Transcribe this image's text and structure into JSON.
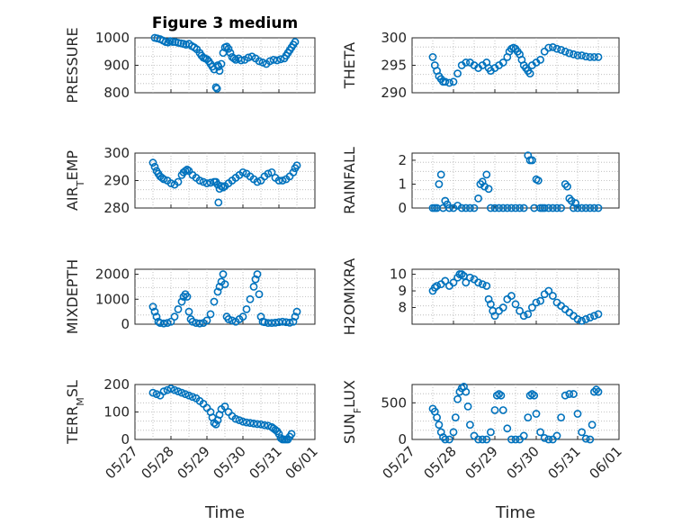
{
  "figure": {
    "title": "Figure 3 medium",
    "marker_color": "#0072bd",
    "x_tick_labels": [
      "05/27",
      "05/28",
      "05/29",
      "05/30",
      "05/31",
      "06/01"
    ]
  },
  "chart_data": [
    {
      "type": "scatter",
      "marker": "circle",
      "grid": "on",
      "title": "Figure 3 medium",
      "xlabel": "",
      "ylabel": "PRESSURE",
      "xlim": [
        0,
        5
      ],
      "ylim": [
        800,
        1000
      ],
      "yticks": [
        800,
        900,
        1000
      ],
      "x": [
        0.55,
        0.62,
        0.7,
        0.78,
        0.85,
        0.92,
        0.98,
        1.05,
        1.12,
        1.2,
        1.28,
        1.35,
        1.42,
        1.5,
        1.58,
        1.65,
        1.72,
        1.8,
        1.85,
        1.9,
        1.95,
        2.0,
        2.05,
        2.1,
        2.15,
        2.2,
        2.25,
        2.28,
        2.3,
        2.32,
        2.35,
        2.4,
        2.45,
        2.5,
        2.55,
        2.6,
        2.65,
        2.7,
        2.75,
        2.8,
        2.88,
        2.95,
        3.05,
        3.15,
        3.25,
        3.35,
        3.45,
        3.55,
        3.65,
        3.75,
        3.85,
        3.95,
        4.05,
        4.15,
        4.2,
        4.25,
        4.3,
        4.35,
        4.4,
        4.45
      ],
      "y": [
        1000,
        998,
        995,
        990,
        985,
        983,
        988,
        985,
        985,
        982,
        980,
        978,
        975,
        978,
        970,
        965,
        958,
        945,
        935,
        928,
        925,
        922,
        915,
        905,
        895,
        885,
        820,
        815,
        900,
        895,
        880,
        905,
        945,
        965,
        968,
        960,
        945,
        930,
        925,
        920,
        925,
        918,
        920,
        928,
        932,
        925,
        915,
        910,
        905,
        915,
        920,
        918,
        922,
        925,
        935,
        945,
        955,
        965,
        975,
        985
      ]
    },
    {
      "type": "scatter",
      "marker": "circle",
      "grid": "on",
      "xlabel": "",
      "ylabel": "THETA",
      "xlim": [
        0,
        5
      ],
      "ylim": [
        290,
        300
      ],
      "yticks": [
        290,
        295,
        300
      ],
      "x": [
        0.5,
        0.55,
        0.6,
        0.65,
        0.7,
        0.75,
        0.8,
        0.9,
        1.0,
        1.1,
        1.2,
        1.3,
        1.4,
        1.5,
        1.6,
        1.7,
        1.8,
        1.85,
        1.9,
        2.0,
        2.1,
        2.2,
        2.3,
        2.35,
        2.4,
        2.45,
        2.5,
        2.55,
        2.6,
        2.65,
        2.7,
        2.75,
        2.8,
        2.85,
        2.9,
        3.0,
        3.1,
        3.2,
        3.3,
        3.4,
        3.5,
        3.6,
        3.7,
        3.8,
        3.9,
        4.0,
        4.1,
        4.2,
        4.3,
        4.4,
        4.5
      ],
      "y": [
        296.5,
        295,
        294,
        293,
        292.5,
        292,
        292,
        291.8,
        292,
        293.5,
        295,
        295.5,
        295.5,
        295,
        294.5,
        295,
        295.5,
        294.5,
        294,
        294.5,
        295,
        295.5,
        296.5,
        297.5,
        298,
        298.2,
        298,
        297.5,
        297,
        296,
        295,
        294.5,
        294,
        293.5,
        295,
        295.5,
        296,
        297.5,
        298.2,
        298.3,
        298,
        297.8,
        297.5,
        297.2,
        297,
        296.8,
        296.8,
        296.6,
        296.5,
        296.5,
        296.5
      ]
    },
    {
      "type": "scatter",
      "marker": "circle",
      "grid": "on",
      "xlabel": "",
      "ylabel": "AIR_TEMP",
      "xlim": [
        0,
        5
      ],
      "ylim": [
        280,
        300
      ],
      "yticks": [
        280,
        290,
        300
      ],
      "x": [
        0.5,
        0.55,
        0.6,
        0.65,
        0.7,
        0.75,
        0.8,
        0.9,
        1.0,
        1.1,
        1.2,
        1.3,
        1.35,
        1.4,
        1.45,
        1.5,
        1.6,
        1.7,
        1.8,
        1.9,
        2.0,
        2.1,
        2.2,
        2.25,
        2.3,
        2.32,
        2.35,
        2.4,
        2.45,
        2.5,
        2.6,
        2.7,
        2.8,
        2.9,
        3.0,
        3.1,
        3.2,
        3.3,
        3.4,
        3.5,
        3.6,
        3.7,
        3.8,
        3.9,
        4.0,
        4.1,
        4.2,
        4.3,
        4.4,
        4.45,
        4.5
      ],
      "y": [
        296.5,
        295,
        293.5,
        292.5,
        291.5,
        291,
        290.5,
        290,
        289,
        288.5,
        289.5,
        292,
        293,
        293.5,
        294,
        293.5,
        292,
        291,
        290,
        289.5,
        289,
        289.2,
        289.5,
        289.5,
        288.5,
        282,
        287,
        288,
        287.5,
        288,
        289,
        290,
        291,
        292,
        293,
        292.5,
        291.5,
        290.5,
        289.5,
        290,
        291.5,
        292.5,
        293,
        291,
        290,
        290,
        290.5,
        291.5,
        293,
        294.5,
        295.5
      ]
    },
    {
      "type": "scatter",
      "marker": "circle",
      "grid": "on",
      "xlabel": "",
      "ylabel": "RAINFALL",
      "xlim": [
        0,
        5
      ],
      "ylim": [
        0,
        2.3
      ],
      "yticks": [
        0,
        1,
        2
      ],
      "x": [
        0.5,
        0.55,
        0.6,
        0.65,
        0.7,
        0.75,
        0.8,
        0.85,
        0.9,
        1.0,
        1.1,
        1.2,
        1.3,
        1.4,
        1.5,
        1.6,
        1.65,
        1.7,
        1.75,
        1.8,
        1.85,
        1.9,
        2.0,
        2.1,
        2.2,
        2.3,
        2.4,
        2.5,
        2.6,
        2.7,
        2.8,
        2.85,
        2.9,
        2.95,
        3.0,
        3.05,
        3.1,
        3.15,
        3.2,
        3.3,
        3.4,
        3.5,
        3.6,
        3.7,
        3.75,
        3.8,
        3.85,
        3.9,
        3.95,
        4.0,
        4.1,
        4.2,
        4.3,
        4.4,
        4.5
      ],
      "y": [
        0,
        0,
        0,
        1.0,
        1.4,
        0,
        0.3,
        0.15,
        0,
        0,
        0.1,
        0,
        0,
        0,
        0,
        0.4,
        1.0,
        1.1,
        0.9,
        1.4,
        0.8,
        0,
        0,
        0,
        0,
        0,
        0,
        0,
        0,
        0,
        2.2,
        2.0,
        2.0,
        0,
        1.2,
        1.15,
        0,
        0,
        0,
        0,
        0,
        0,
        0,
        1.0,
        0.9,
        0.4,
        0.3,
        0,
        0.2,
        0,
        0,
        0,
        0,
        0,
        0
      ]
    },
    {
      "type": "scatter",
      "marker": "circle",
      "grid": "on",
      "xlabel": "",
      "ylabel": "MIXDEPTH",
      "xlim": [
        0,
        5
      ],
      "ylim": [
        0,
        2200
      ],
      "yticks": [
        0,
        1000,
        2000
      ],
      "x": [
        0.5,
        0.55,
        0.6,
        0.65,
        0.7,
        0.8,
        0.9,
        1.0,
        1.1,
        1.2,
        1.3,
        1.35,
        1.4,
        1.45,
        1.5,
        1.55,
        1.6,
        1.7,
        1.8,
        1.9,
        2.0,
        2.1,
        2.2,
        2.3,
        2.35,
        2.4,
        2.45,
        2.5,
        2.55,
        2.6,
        2.7,
        2.8,
        2.9,
        3.0,
        3.1,
        3.2,
        3.3,
        3.35,
        3.4,
        3.45,
        3.5,
        3.55,
        3.6,
        3.7,
        3.8,
        3.9,
        4.0,
        4.1,
        4.2,
        4.3,
        4.4,
        4.45,
        4.5
      ],
      "y": [
        700,
        500,
        300,
        100,
        50,
        30,
        50,
        100,
        300,
        600,
        900,
        1100,
        1200,
        1100,
        500,
        200,
        100,
        50,
        30,
        50,
        150,
        400,
        900,
        1300,
        1500,
        1700,
        2000,
        1600,
        300,
        200,
        150,
        100,
        200,
        300,
        600,
        1000,
        1500,
        1800,
        2000,
        1200,
        300,
        100,
        80,
        50,
        50,
        60,
        80,
        100,
        80,
        60,
        100,
        300,
        500
      ]
    },
    {
      "type": "scatter",
      "marker": "circle",
      "grid": "on",
      "xlabel": "",
      "ylabel": "H2OMIXRA",
      "xlim": [
        0,
        5
      ],
      "ylim": [
        7,
        10.3
      ],
      "yticks": [
        8,
        9,
        10
      ],
      "x": [
        0.5,
        0.55,
        0.6,
        0.7,
        0.8,
        0.9,
        1.0,
        1.1,
        1.15,
        1.2,
        1.25,
        1.3,
        1.4,
        1.5,
        1.6,
        1.7,
        1.8,
        1.85,
        1.9,
        1.95,
        2.0,
        2.1,
        2.2,
        2.3,
        2.4,
        2.5,
        2.6,
        2.7,
        2.8,
        2.9,
        3.0,
        3.1,
        3.2,
        3.3,
        3.4,
        3.5,
        3.6,
        3.7,
        3.8,
        3.9,
        4.0,
        4.1,
        4.2,
        4.3,
        4.4,
        4.5
      ],
      "y": [
        9.0,
        9.2,
        9.3,
        9.4,
        9.6,
        9.3,
        9.5,
        9.8,
        10.0,
        10.0,
        9.9,
        9.5,
        9.8,
        9.7,
        9.5,
        9.4,
        9.3,
        8.5,
        8.2,
        7.8,
        7.5,
        7.8,
        8.0,
        8.5,
        8.7,
        8.2,
        7.8,
        7.5,
        7.6,
        8.0,
        8.3,
        8.4,
        8.8,
        9.0,
        8.7,
        8.3,
        8.1,
        7.9,
        7.7,
        7.5,
        7.3,
        7.2,
        7.3,
        7.4,
        7.5,
        7.6
      ]
    },
    {
      "type": "scatter",
      "marker": "circle",
      "grid": "on",
      "xlabel": "Time",
      "ylabel": "TERR_MSL",
      "xlim": [
        0,
        5
      ],
      "ylim": [
        0,
        200
      ],
      "yticks": [
        0,
        100,
        200
      ],
      "x": [
        0.5,
        0.6,
        0.7,
        0.8,
        0.9,
        1.0,
        1.1,
        1.2,
        1.3,
        1.4,
        1.5,
        1.6,
        1.7,
        1.8,
        1.9,
        2.0,
        2.1,
        2.15,
        2.2,
        2.25,
        2.3,
        2.35,
        2.4,
        2.5,
        2.6,
        2.7,
        2.8,
        2.9,
        3.0,
        3.1,
        3.2,
        3.3,
        3.4,
        3.5,
        3.6,
        3.7,
        3.8,
        3.85,
        3.9,
        3.95,
        4.0,
        4.05,
        4.1,
        4.15,
        4.2,
        4.25,
        4.3,
        4.35
      ],
      "y": [
        170,
        165,
        160,
        175,
        180,
        185,
        180,
        175,
        170,
        165,
        160,
        155,
        150,
        140,
        130,
        115,
        100,
        80,
        60,
        55,
        70,
        90,
        110,
        120,
        100,
        85,
        75,
        70,
        65,
        62,
        60,
        58,
        56,
        55,
        52,
        50,
        45,
        40,
        35,
        30,
        20,
        5,
        0,
        0,
        0,
        0,
        10,
        20
      ]
    },
    {
      "type": "scatter",
      "marker": "circle",
      "grid": "on",
      "xlabel": "Time",
      "ylabel": "SUN_FLUX",
      "xlim": [
        0,
        5
      ],
      "ylim": [
        0,
        750
      ],
      "yticks": [
        0,
        500
      ],
      "x": [
        0.5,
        0.55,
        0.6,
        0.65,
        0.7,
        0.75,
        0.8,
        0.9,
        1.0,
        1.05,
        1.1,
        1.15,
        1.2,
        1.25,
        1.3,
        1.35,
        1.4,
        1.5,
        1.6,
        1.7,
        1.8,
        1.9,
        2.0,
        2.05,
        2.1,
        2.15,
        2.2,
        2.3,
        2.4,
        2.5,
        2.6,
        2.7,
        2.8,
        2.85,
        2.9,
        2.95,
        3.0,
        3.1,
        3.2,
        3.3,
        3.4,
        3.5,
        3.6,
        3.7,
        3.8,
        3.9,
        4.0,
        4.1,
        4.2,
        4.3,
        4.35,
        4.4,
        4.45,
        4.5
      ],
      "y": [
        420,
        380,
        300,
        200,
        100,
        30,
        0,
        0,
        100,
        300,
        550,
        650,
        700,
        720,
        650,
        450,
        200,
        50,
        0,
        0,
        0,
        100,
        400,
        600,
        620,
        600,
        400,
        150,
        0,
        0,
        0,
        50,
        300,
        600,
        620,
        600,
        350,
        100,
        20,
        0,
        0,
        50,
        300,
        600,
        620,
        620,
        350,
        100,
        10,
        0,
        200,
        650,
        680,
        650
      ]
    }
  ]
}
